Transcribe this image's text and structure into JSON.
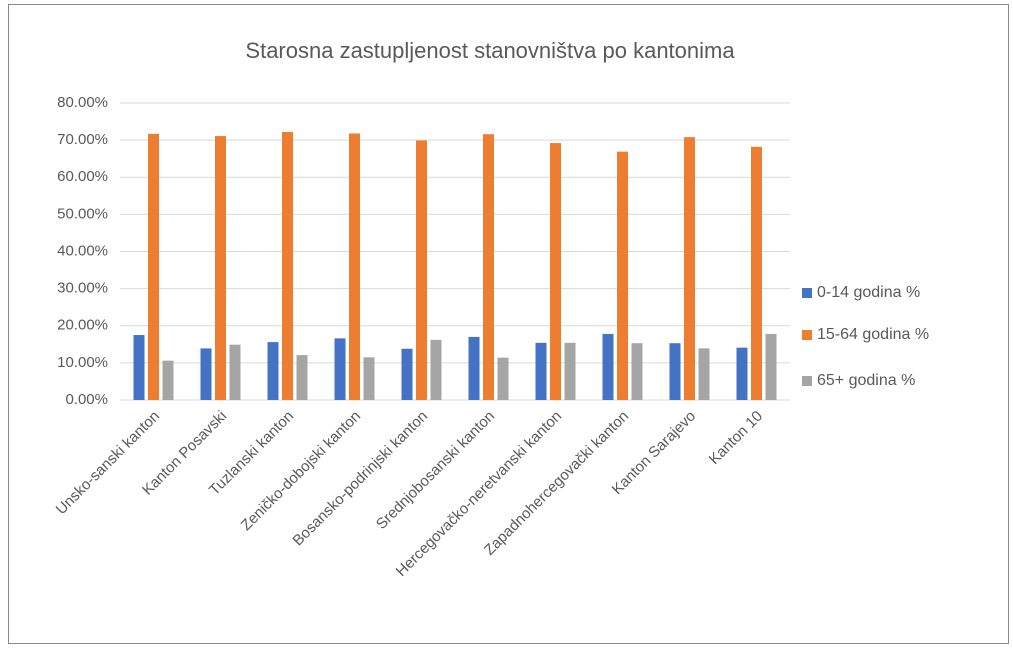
{
  "chart_data": {
    "type": "bar",
    "title": "Starosna zastupljenost stanovništva po kantonima",
    "categories": [
      "Unsko-sanski kanton",
      "Kanton Posavski",
      "Tuzlanski kanton",
      "Zeničko-dobojski kanton",
      "Bosansko-podrinjski kanton",
      "Srednjobosanski kanton",
      "Hercegovačko-neretvanski kanton",
      "Zapadnohercegovački kanton",
      "Kanton Sarajevo",
      "Kanton 10"
    ],
    "series": [
      {
        "name": "0-14 godina %",
        "color": "#4472c4",
        "values": [
          17.5,
          13.9,
          15.6,
          16.6,
          13.8,
          17.0,
          15.4,
          17.8,
          15.3,
          14.1
        ]
      },
      {
        "name": "15-64 godina %",
        "color": "#ed7d31",
        "values": [
          71.7,
          71.1,
          72.2,
          71.8,
          69.9,
          71.6,
          69.2,
          66.9,
          70.8,
          68.2
        ]
      },
      {
        "name": "65+ godina %",
        "color": "#a5a5a5",
        "values": [
          10.6,
          14.9,
          12.1,
          11.5,
          16.2,
          11.4,
          15.4,
          15.3,
          13.9,
          17.8
        ]
      }
    ],
    "ylim": [
      0,
      80
    ],
    "yticks": [
      {
        "value": 0,
        "label": "0.00%"
      },
      {
        "value": 10,
        "label": "10.00%"
      },
      {
        "value": 20,
        "label": "20.00%"
      },
      {
        "value": 30,
        "label": "30.00%"
      },
      {
        "value": 40,
        "label": "40.00%"
      },
      {
        "value": 50,
        "label": "50.00%"
      },
      {
        "value": 60,
        "label": "60.00%"
      },
      {
        "value": 70,
        "label": "70.00%"
      },
      {
        "value": 80,
        "label": "80.00%"
      }
    ],
    "grid": true,
    "legend": "right"
  }
}
